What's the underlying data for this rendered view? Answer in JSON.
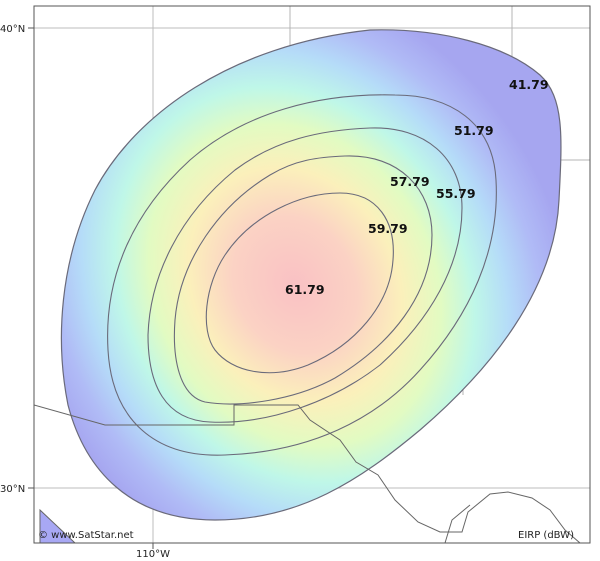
{
  "map": {
    "latitude_labels": [
      "40°N",
      "30°N"
    ],
    "longitude_labels": [
      "110°W"
    ],
    "copyright": "© www.SatStar.net",
    "legend_unit": "EIRP (dBW)",
    "contour_labels": [
      "41.79",
      "51.79",
      "57.79",
      "55.79",
      "59.79",
      "61.79"
    ],
    "colors": {
      "frame": "#555555",
      "grid": "#bcbcbc",
      "border_lines": "#666666",
      "contour_line": "#6a6a7a",
      "outer_fill": "#a8a8f4",
      "peak_fill": "#f8c4c4"
    }
  }
}
